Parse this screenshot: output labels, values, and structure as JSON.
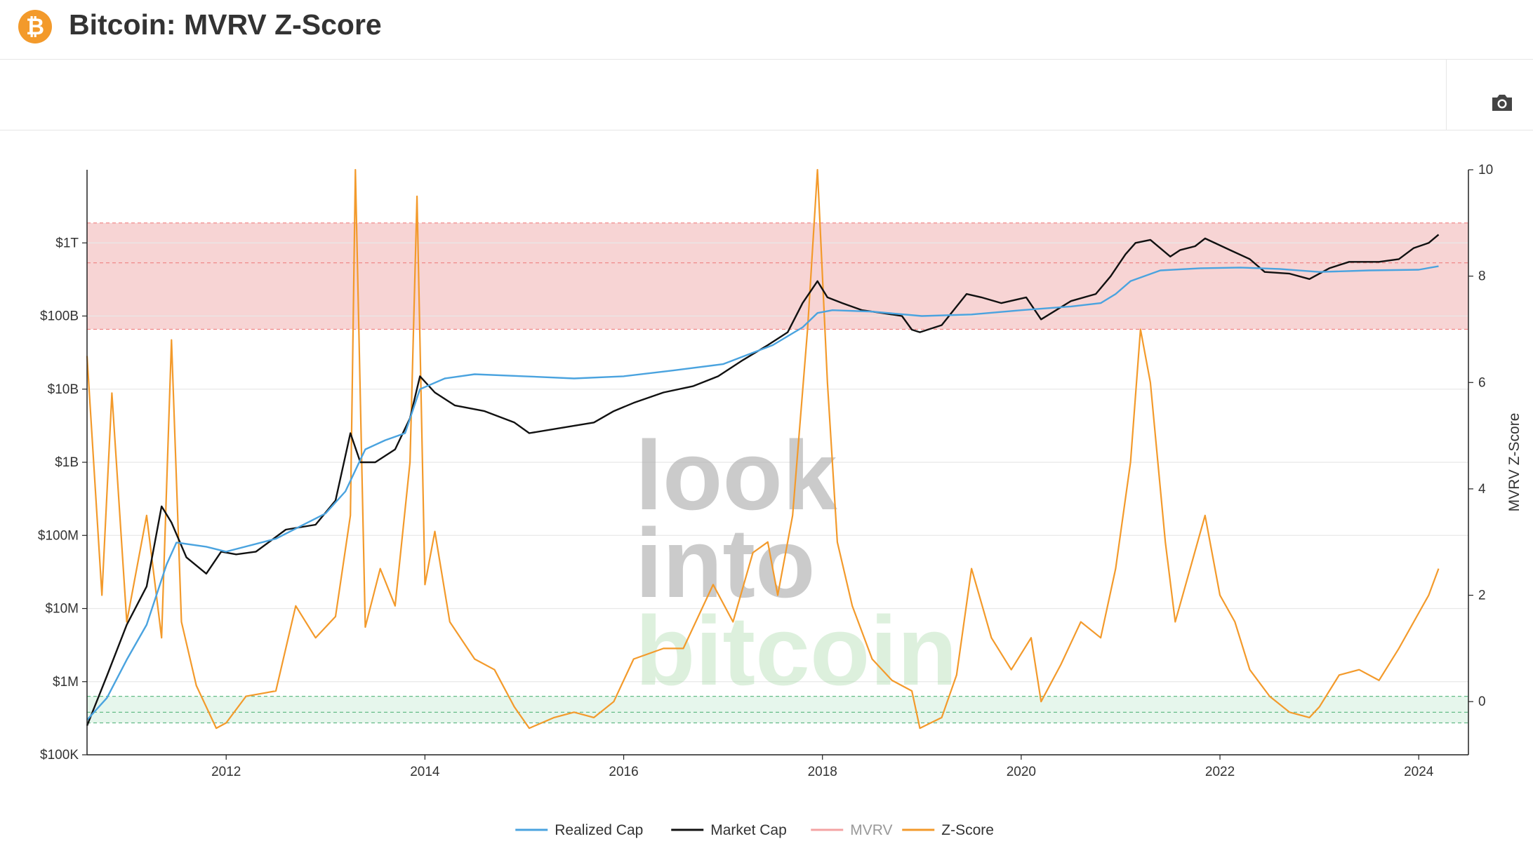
{
  "header": {
    "title": "Bitcoin: MVRV Z-Score",
    "logo_glyph": "₿",
    "logo_color": "#f39a2b"
  },
  "toolbar": {
    "camera_icon": "camera-icon"
  },
  "watermark": {
    "line1": "look",
    "line2": "into",
    "line3": "bitcoin"
  },
  "chart_data": {
    "type": "line",
    "title": "Bitcoin: MVRV Z-Score",
    "left_axis": {
      "scale": "log",
      "range": [
        100000,
        10000000000000
      ],
      "tick_values": [
        100000,
        1000000,
        10000000,
        100000000,
        1000000000,
        10000000000,
        100000000000,
        1000000000000
      ],
      "tick_labels": [
        "$100K",
        "$1M",
        "$10M",
        "$100M",
        "$1B",
        "$10B",
        "$100B",
        "$1T"
      ]
    },
    "right_axis": {
      "label": "MVRV Z-Score",
      "scale": "linear",
      "range": [
        -1,
        10
      ],
      "tick_values": [
        0,
        2,
        4,
        6,
        8,
        10
      ],
      "tick_labels": [
        "0",
        "2",
        "4",
        "6",
        "8",
        "10"
      ]
    },
    "x_axis": {
      "range": [
        2010.6,
        2024.5
      ],
      "tick_values": [
        2012,
        2014,
        2016,
        2018,
        2020,
        2022,
        2024
      ],
      "tick_labels": [
        "2012",
        "2014",
        "2016",
        "2018",
        "2020",
        "2022",
        "2024"
      ]
    },
    "bands": [
      {
        "name": "red",
        "axis": "right",
        "from": 7,
        "to": 9,
        "mid": 8.25,
        "color": "#f7d4d4",
        "line_color": "#f08080"
      },
      {
        "name": "green",
        "axis": "right",
        "from": -0.4,
        "to": 0.1,
        "mid": -0.2,
        "color": "#e6f6ec",
        "line_color": "#66bb88"
      }
    ],
    "grid": true,
    "legend": {
      "placement": "bottom-center",
      "items": [
        {
          "label": "Realized Cap",
          "color": "#4aa3df"
        },
        {
          "label": "Market Cap",
          "color": "#111111"
        },
        {
          "label": "MVRV",
          "color": "#f4a3a3"
        },
        {
          "label": "Z-Score",
          "color": "#f39a2b"
        }
      ]
    },
    "series": [
      {
        "name": "Z-Score",
        "axis": "right",
        "color": "#f39a2b",
        "x": [
          2010.6,
          2010.75,
          2010.85,
          2011.0,
          2011.2,
          2011.35,
          2011.45,
          2011.55,
          2011.7,
          2011.9,
          2012.0,
          2012.2,
          2012.5,
          2012.7,
          2012.9,
          2013.1,
          2013.25,
          2013.3,
          2013.4,
          2013.55,
          2013.7,
          2013.85,
          2013.92,
          2014.0,
          2014.1,
          2014.25,
          2014.5,
          2014.7,
          2014.9,
          2015.05,
          2015.3,
          2015.5,
          2015.7,
          2015.9,
          2016.1,
          2016.4,
          2016.6,
          2016.9,
          2017.1,
          2017.3,
          2017.45,
          2017.55,
          2017.7,
          2017.85,
          2017.95,
          2018.05,
          2018.15,
          2018.3,
          2018.5,
          2018.7,
          2018.9,
          2018.98,
          2019.2,
          2019.35,
          2019.5,
          2019.7,
          2019.9,
          2020.1,
          2020.2,
          2020.4,
          2020.6,
          2020.8,
          2020.95,
          2021.1,
          2021.2,
          2021.3,
          2021.45,
          2021.55,
          2021.7,
          2021.85,
          2022.0,
          2022.15,
          2022.3,
          2022.5,
          2022.7,
          2022.9,
          2023.0,
          2023.2,
          2023.4,
          2023.6,
          2023.8,
          2023.95,
          2024.1,
          2024.2
        ],
        "y": [
          6.5,
          2.0,
          5.8,
          1.5,
          3.5,
          1.2,
          6.8,
          1.5,
          0.3,
          -0.5,
          -0.4,
          0.1,
          0.2,
          1.8,
          1.2,
          1.6,
          3.5,
          10.0,
          1.4,
          2.5,
          1.8,
          4.5,
          9.5,
          2.2,
          3.2,
          1.5,
          0.8,
          0.6,
          -0.1,
          -0.5,
          -0.3,
          -0.2,
          -0.3,
          0.0,
          0.8,
          1.0,
          1.0,
          2.2,
          1.5,
          2.8,
          3.0,
          2.0,
          3.5,
          7.0,
          10.0,
          6.0,
          3.0,
          1.8,
          0.8,
          0.4,
          0.2,
          -0.5,
          -0.3,
          0.5,
          2.5,
          1.2,
          0.6,
          1.2,
          0.0,
          0.7,
          1.5,
          1.2,
          2.5,
          4.5,
          7.0,
          6.0,
          3.0,
          1.5,
          2.5,
          3.5,
          2.0,
          1.5,
          0.6,
          0.1,
          -0.2,
          -0.3,
          -0.1,
          0.5,
          0.6,
          0.4,
          1.0,
          1.5,
          2.0,
          2.5
        ]
      },
      {
        "name": "Market Cap",
        "axis": "left",
        "color": "#111111",
        "x": [
          2010.6,
          2010.8,
          2011.0,
          2011.2,
          2011.35,
          2011.45,
          2011.6,
          2011.8,
          2011.95,
          2012.1,
          2012.3,
          2012.6,
          2012.9,
          2013.1,
          2013.25,
          2013.35,
          2013.5,
          2013.7,
          2013.85,
          2013.95,
          2014.1,
          2014.3,
          2014.6,
          2014.9,
          2015.05,
          2015.4,
          2015.7,
          2015.9,
          2016.1,
          2016.4,
          2016.7,
          2016.95,
          2017.2,
          2017.45,
          2017.65,
          2017.8,
          2017.95,
          2018.05,
          2018.2,
          2018.4,
          2018.6,
          2018.8,
          2018.9,
          2018.98,
          2019.2,
          2019.45,
          2019.6,
          2019.8,
          2020.05,
          2020.2,
          2020.5,
          2020.75,
          2020.9,
          2021.05,
          2021.15,
          2021.3,
          2021.5,
          2021.6,
          2021.75,
          2021.85,
          2022.1,
          2022.3,
          2022.45,
          2022.7,
          2022.9,
          2023.1,
          2023.3,
          2023.6,
          2023.8,
          2023.95,
          2024.1,
          2024.2
        ],
        "y": [
          250000,
          1200000,
          6000000,
          20000000,
          250000000,
          150000000,
          50000000,
          30000000,
          60000000,
          55000000,
          60000000,
          120000000,
          140000000,
          300000000,
          2500000000,
          1000000000,
          1000000000,
          1500000000,
          4000000000,
          15000000000,
          9000000000,
          6000000000,
          5000000000,
          3500000000,
          2500000000,
          3000000000,
          3500000000,
          5000000000,
          6500000000,
          9000000000,
          11000000000,
          15000000000,
          25000000000,
          40000000000,
          60000000000,
          150000000000,
          300000000000,
          180000000000,
          150000000000,
          120000000000,
          110000000000,
          100000000000,
          65000000000,
          60000000000,
          75000000000,
          200000000000,
          180000000000,
          150000000000,
          180000000000,
          90000000000,
          160000000000,
          200000000000,
          350000000000,
          700000000000,
          1000000000000,
          1100000000000,
          650000000000,
          800000000000,
          900000000000,
          1150000000000,
          800000000000,
          600000000000,
          400000000000,
          380000000000,
          320000000000,
          450000000000,
          550000000000,
          550000000000,
          600000000000,
          850000000000,
          1000000000000,
          1300000000000
        ]
      },
      {
        "name": "Realized Cap",
        "axis": "left",
        "color": "#4aa3df",
        "x": [
          2010.6,
          2010.8,
          2011.0,
          2011.2,
          2011.4,
          2011.5,
          2011.8,
          2012.0,
          2012.5,
          2013.0,
          2013.2,
          2013.4,
          2013.6,
          2013.8,
          2013.95,
          2014.2,
          2014.5,
          2015.0,
          2015.5,
          2016.0,
          2016.5,
          2017.0,
          2017.5,
          2017.8,
          2017.95,
          2018.1,
          2018.5,
          2019.0,
          2019.5,
          2020.0,
          2020.5,
          2020.8,
          2020.95,
          2021.1,
          2021.4,
          2021.8,
          2022.2,
          2022.6,
          2023.0,
          2023.5,
          2024.0,
          2024.2
        ],
        "y": [
          300000,
          600000,
          2000000,
          6000000,
          40000000,
          80000000,
          70000000,
          60000000,
          90000000,
          200000000,
          400000000,
          1500000000,
          2000000000,
          2500000000,
          10000000000,
          14000000000,
          16000000000,
          15000000000,
          14000000000,
          15000000000,
          18000000000,
          22000000000,
          40000000000,
          70000000000,
          110000000000,
          120000000000,
          115000000000,
          100000000000,
          105000000000,
          120000000000,
          135000000000,
          150000000000,
          200000000000,
          300000000000,
          420000000000,
          450000000000,
          460000000000,
          440000000000,
          400000000000,
          420000000000,
          430000000000,
          480000000000
        ]
      }
    ]
  }
}
